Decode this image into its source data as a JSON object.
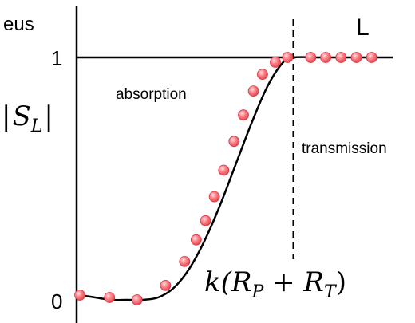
{
  "chart_data": {
    "type": "line",
    "title": "",
    "corner_label": "eus",
    "series_label": "L",
    "ylabel": {
      "bar": "|",
      "symbol": "S",
      "subscript": "L"
    },
    "y_ticks": [
      "1",
      "0"
    ],
    "ylim": [
      0,
      1
    ],
    "xlim": [
      0,
      1
    ],
    "regions": {
      "left": "absorption",
      "right": "transmission"
    },
    "threshold": {
      "x": 0.683,
      "label": {
        "prefix": "k(",
        "r1": "R",
        "r1_sub": "P",
        "plus": " + ",
        "r2": "R",
        "r2_sub": "T",
        "suffix": ")"
      }
    },
    "curve": {
      "x": [
        0,
        0.05,
        0.1,
        0.15,
        0.2,
        0.25,
        0.3,
        0.35,
        0.4,
        0.45,
        0.5,
        0.55,
        0.6,
        0.65,
        0.683,
        0.75,
        0.8,
        0.85,
        0.9,
        0.95,
        1.0
      ],
      "y": [
        0.01,
        0.0,
        -0.01,
        -0.01,
        -0.01,
        0.0,
        0.04,
        0.12,
        0.24,
        0.39,
        0.56,
        0.73,
        0.88,
        0.98,
        1.0,
        1.0,
        1.0,
        1.0,
        1.0,
        1.0,
        1.0
      ]
    },
    "markers": {
      "color": "#ff7f86",
      "x": [
        0.0,
        0.095,
        0.183,
        0.274,
        0.335,
        0.372,
        0.402,
        0.43,
        0.46,
        0.493,
        0.523,
        0.555,
        0.584,
        0.625,
        0.664,
        0.738,
        0.786,
        0.835,
        0.884,
        0.933
      ],
      "y": [
        0.01,
        0.0,
        -0.01,
        0.05,
        0.15,
        0.24,
        0.32,
        0.42,
        0.53,
        0.65,
        0.76,
        0.86,
        0.93,
        0.98,
        1.0,
        1.0,
        1.0,
        1.0,
        1.0,
        1.0
      ]
    }
  }
}
